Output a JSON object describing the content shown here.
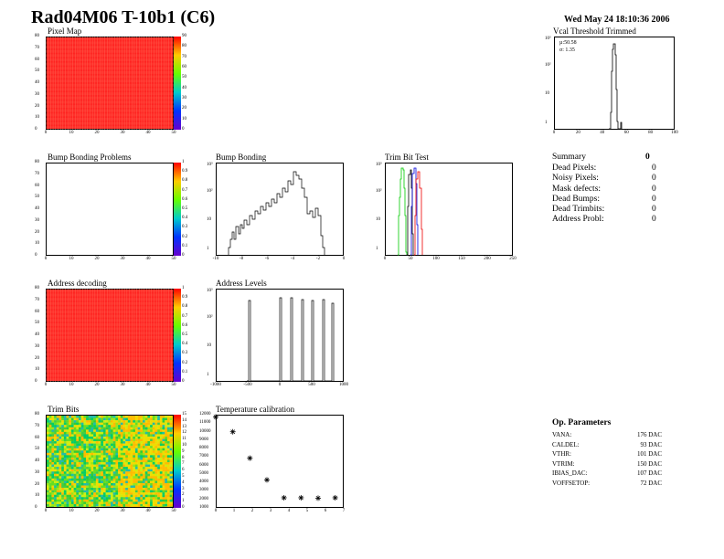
{
  "header": {
    "title": "Rad04M06 T-10b1 (C6)",
    "date": "Wed May 24 18:10:36 2006"
  },
  "colors": {
    "map_red": "#ff1a1a",
    "pixel_grid": "#ff6a55",
    "green_curve": "#00cc00",
    "blue_curve": "#0000dd",
    "red_curve": "#ee0000"
  },
  "plots": {
    "pixel_map": {
      "label": "Pixel Map"
    },
    "vcal": {
      "label": "Vcal Threshold Trimmed",
      "mu": "µ:50.58",
      "sigma": "σ: 1.35"
    },
    "bump_problems": {
      "label": "Bump Bonding Problems"
    },
    "bump_bonding": {
      "label": "Bump Bonding"
    },
    "trim_bit_test": {
      "label": "Trim Bit Test"
    },
    "address_decoding": {
      "label": "Address decoding"
    },
    "address_levels": {
      "label": "Address Levels"
    },
    "trim_bits": {
      "label": "Trim Bits"
    },
    "temperature": {
      "label": "Temperature calibration"
    }
  },
  "axes": {
    "map_x": [
      "0",
      "10",
      "20",
      "30",
      "40",
      "50"
    ],
    "map_y": [
      "0",
      "10",
      "20",
      "30",
      "40",
      "50",
      "60",
      "70",
      "80"
    ],
    "vcal_x": [
      "0",
      "20",
      "40",
      "60",
      "80",
      "100"
    ],
    "bump_x": [
      "-10",
      "-8",
      "-6",
      "-4",
      "-2",
      "0"
    ],
    "trim_x": [
      "0",
      "50",
      "100",
      "150",
      "200",
      "250"
    ],
    "addr_x": [
      "-1000",
      "-500",
      "0",
      "500",
      "1000"
    ],
    "temp_x": [
      "0",
      "1",
      "2",
      "3",
      "4",
      "5",
      "6",
      "7"
    ],
    "temp_y": [
      "1000",
      "2000",
      "3000",
      "4000",
      "5000",
      "6000",
      "7000",
      "8000",
      "9000",
      "10000",
      "11000",
      "12000"
    ],
    "log_y": [
      "1",
      "10",
      "10²",
      "10³"
    ]
  },
  "colorbars": {
    "pixel_map": [
      "0",
      "10",
      "20",
      "30",
      "40",
      "50",
      "60",
      "70",
      "80",
      "90"
    ],
    "bump_problems": [
      "0",
      "0.1",
      "0.2",
      "0.3",
      "0.4",
      "0.5",
      "0.6",
      "0.7",
      "0.8",
      "0.9",
      "1"
    ],
    "address_decoding": [
      "0",
      "0.1",
      "0.2",
      "0.3",
      "0.4",
      "0.5",
      "0.6",
      "0.7",
      "0.8",
      "0.9",
      "1"
    ],
    "trim_bits": [
      "0",
      "1",
      "2",
      "3",
      "4",
      "5",
      "6",
      "7",
      "8",
      "9",
      "10",
      "11",
      "12",
      "13",
      "14",
      "15"
    ]
  },
  "summary": {
    "title": "Summary",
    "title_value": "0",
    "rows": [
      {
        "label": "Dead Pixels:",
        "value": "0"
      },
      {
        "label": "Noisy Pixels:",
        "value": "0"
      },
      {
        "label": "Mask defects:",
        "value": "0"
      },
      {
        "label": "Dead Bumps:",
        "value": "0"
      },
      {
        "label": "Dead Trimbits:",
        "value": "0"
      },
      {
        "label": "Address Probl:",
        "value": "0"
      }
    ]
  },
  "op_params": {
    "title": "Op. Parameters",
    "rows": [
      {
        "label": "VANA:",
        "value": "176 DAC"
      },
      {
        "label": "CALDEL:",
        "value": "93 DAC"
      },
      {
        "label": "VTHR:",
        "value": "101 DAC"
      },
      {
        "label": "VTRIM:",
        "value": "150 DAC"
      },
      {
        "label": "IBIAS_DAC:",
        "value": "107 DAC"
      },
      {
        "label": "VOFFSETOP:",
        "value": "72 DAC"
      }
    ]
  },
  "chart_data": [
    {
      "type": "scatter",
      "title": "Temperature calibration",
      "x": [
        0,
        1,
        2,
        3,
        4,
        5,
        6,
        7
      ],
      "y": [
        11700,
        9800,
        6400,
        3600,
        1300,
        1300,
        1250,
        1300
      ],
      "xlim": [
        0,
        7.5
      ],
      "ylim": [
        0,
        12000
      ]
    }
  ]
}
